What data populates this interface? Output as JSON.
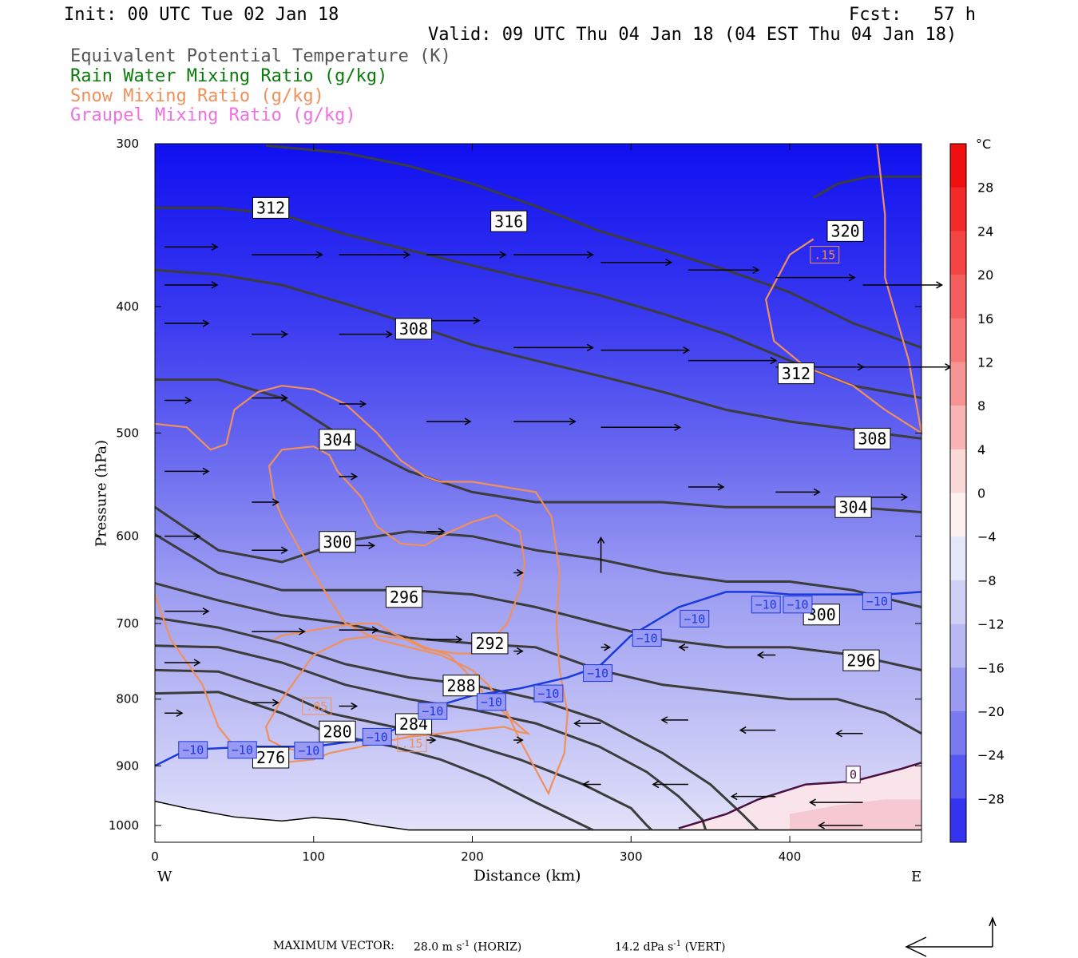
{
  "header": {
    "init": "Init: 00 UTC Tue 02 Jan 18",
    "fcst": "Fcst:   57 h",
    "valid": "Valid: 09 UTC Thu 04 Jan 18 (04 EST Thu 04 Jan 18)"
  },
  "fields": [
    {
      "label": "Equivalent Potential Temperature (K)",
      "color": "#555555"
    },
    {
      "label": "Rain Water Mixing Ratio (g/kg)",
      "color": "#0a7a0a"
    },
    {
      "label": "Snow Mixing Ratio (g/kg)",
      "color": "#f0905a"
    },
    {
      "label": "Graupel Mixing Ratio (g/kg)",
      "color": "#f070e0"
    }
  ],
  "axes": {
    "ylabel": "Pressure (hPa)",
    "xlabel": "Distance (km)",
    "west": "W",
    "east": "E",
    "y_ticks": [
      "300",
      "400",
      "500",
      "600",
      "700",
      "800",
      "900",
      "1000"
    ],
    "x_ticks": [
      "0",
      "100",
      "200",
      "300",
      "400"
    ]
  },
  "colorbar": {
    "unit": "°C",
    "ticks": [
      "28",
      "24",
      "20",
      "16",
      "12",
      "8",
      "4",
      "0",
      "-4",
      "-8",
      "-12",
      "-16",
      "-20",
      "-24",
      "-28"
    ]
  },
  "footer": {
    "max_vector": "MAXIMUM VECTOR:",
    "horiz": "28.0 m s",
    "horiz_unit": "(HORIZ)",
    "vert": "14.2 dPa s",
    "vert_unit": "(VERT)",
    "exp": "-1"
  },
  "chart_data": {
    "type": "contour",
    "xlim": [
      0,
      483
    ],
    "ylim": [
      1030,
      300
    ],
    "y_scale": "log",
    "temperature_shading_levels": [
      -28,
      -24,
      -20,
      -16,
      -12,
      -8,
      -4,
      0,
      4,
      8,
      12,
      16,
      20,
      24,
      28
    ],
    "theta_e_contours": [
      {
        "level": 276,
        "x": [
          0,
          40,
          80,
          110,
          150,
          180,
          210,
          240,
          270,
          276
        ],
        "p": [
          792,
          790,
          820,
          850,
          870,
          890,
          920,
          960,
          1000,
          1008
        ]
      },
      {
        "level": 280,
        "x": [
          0,
          40,
          80,
          110,
          150,
          190,
          230,
          270,
          300,
          310,
          313
        ],
        "p": [
          760,
          762,
          790,
          820,
          840,
          860,
          890,
          930,
          970,
          1000,
          1008
        ]
      },
      {
        "level": 284,
        "x": [
          0,
          40,
          80,
          120,
          160,
          200,
          240,
          280,
          310,
          330,
          345,
          347
        ],
        "p": [
          728,
          730,
          750,
          780,
          800,
          815,
          835,
          870,
          910,
          950,
          990,
          1008
        ]
      },
      {
        "level": 288,
        "x": [
          0,
          40,
          80,
          120,
          160,
          200,
          240,
          280,
          320,
          350,
          370,
          380
        ],
        "p": [
          693,
          705,
          725,
          752,
          770,
          780,
          800,
          830,
          880,
          930,
          980,
          1008
        ]
      },
      {
        "level": 292,
        "x": [
          0,
          40,
          80,
          120,
          160,
          200,
          240,
          280,
          320,
          360,
          400,
          430,
          460,
          483
        ],
        "p": [
          652,
          672,
          690,
          700,
          718,
          725,
          730,
          760,
          780,
          790,
          800,
          800,
          820,
          850
        ]
      },
      {
        "level": 296,
        "x": [
          0,
          40,
          80,
          120,
          160,
          200,
          240,
          280,
          320,
          360,
          400,
          440,
          483
        ],
        "p": [
          598,
          640,
          660,
          660,
          660,
          665,
          680,
          700,
          720,
          730,
          730,
          740,
          760
        ]
      },
      {
        "level": 300,
        "x": [
          0,
          40,
          80,
          120,
          160,
          200,
          240,
          280,
          320,
          360,
          400,
          440,
          483
        ],
        "p": [
          570,
          615,
          628,
          605,
          595,
          600,
          615,
          625,
          640,
          650,
          650,
          660,
          680
        ]
      },
      {
        "level": 304,
        "x": [
          0,
          40,
          80,
          120,
          160,
          200,
          240,
          280,
          320,
          360,
          400,
          440,
          483
        ],
        "p": [
          455,
          455,
          470,
          505,
          535,
          555,
          565,
          565,
          565,
          570,
          570,
          570,
          575
        ]
      },
      {
        "level": 308,
        "x": [
          0,
          40,
          80,
          120,
          160,
          200,
          240,
          280,
          320,
          360,
          400,
          440,
          483
        ],
        "p": [
          375,
          378,
          385,
          398,
          412,
          428,
          440,
          452,
          465,
          480,
          490,
          497,
          505
        ]
      },
      {
        "level": 312,
        "x": [
          0,
          40,
          80,
          120,
          160,
          200,
          240,
          280,
          320,
          360,
          400,
          440,
          483
        ],
        "p": [
          336,
          336,
          340,
          352,
          362,
          372,
          382,
          392,
          405,
          420,
          440,
          460,
          470
        ]
      },
      {
        "level": 316,
        "x": [
          70,
          120,
          160,
          200,
          240,
          280,
          320,
          360,
          400,
          440,
          483
        ],
        "p": [
          301,
          305,
          312,
          322,
          335,
          350,
          362,
          375,
          390,
          412,
          430
        ]
      },
      {
        "level": 320,
        "x": [
          415,
          430,
          450,
          483
        ],
        "p": [
          330,
          322,
          318,
          318
        ]
      }
    ],
    "snow_contours": [
      {
        "level": 0.05,
        "x": [
          0,
          10,
          30,
          40,
          50,
          60,
          80,
          100,
          110,
          130,
          150,
          160,
          180,
          200,
          220,
          230,
          235,
          210,
          195,
          185,
          170,
          160,
          140,
          120,
          100,
          80,
          70,
          72,
          80,
          95,
          100
        ],
        "p": [
          665,
          720,
          780,
          840,
          870,
          880,
          895,
          890,
          880,
          870,
          860,
          855,
          850,
          845,
          840,
          848,
          850,
          800,
          760,
          740,
          730,
          720,
          715,
          720,
          740,
          800,
          840,
          860,
          870,
          880,
          890
        ]
      },
      {
        "level": 0.05,
        "x": [
          0,
          20,
          35,
          45,
          50,
          65,
          80,
          100,
          120,
          140,
          155,
          170,
          180,
          200,
          220,
          240,
          250,
          255,
          253,
          255,
          260,
          258,
          250,
          248,
          230,
          220,
          210,
          200,
          180,
          160,
          140,
          120,
          110,
          100,
          90,
          80,
          75,
          72,
          80,
          100,
          110,
          115,
          130,
          140,
          155,
          170,
          180,
          200,
          215,
          230,
          233,
          230,
          222,
          210,
          200,
          190,
          170,
          150,
          140,
          130,
          120,
          110,
          100,
          90,
          80,
          75
        ],
        "p": [
          492,
          495,
          515,
          510,
          480,
          465,
          460,
          463,
          475,
          500,
          525,
          540,
          545,
          545,
          550,
          555,
          580,
          640,
          700,
          760,
          820,
          880,
          930,
          945,
          860,
          810,
          780,
          760,
          740,
          730,
          720,
          700,
          670,
          640,
          610,
          580,
          560,
          530,
          515,
          512,
          520,
          535,
          560,
          590,
          608,
          610,
          600,
          585,
          578,
          595,
          630,
          660,
          700,
          725,
          738,
          738,
          732,
          712,
          700,
          700,
          702,
          705,
          708,
          712,
          715,
          720
        ]
      },
      {
        "level": 0.15,
        "x": [
          415,
          400,
          385,
          390,
          410,
          440,
          460,
          483,
          475,
          460,
          460,
          455
        ],
        "p": [
          355,
          365,
          395,
          425,
          445,
          460,
          480,
          500,
          440,
          380,
          340,
          300
        ]
      }
    ],
    "graupel_contours": [],
    "temperature_contours": [
      {
        "level": -10,
        "x": [
          0,
          20,
          60,
          100,
          130,
          150,
          170,
          200,
          230,
          260,
          280,
          300,
          330,
          360,
          380,
          400,
          430,
          460,
          483
        ],
        "p": [
          900,
          875,
          870,
          870,
          860,
          845,
          815,
          795,
          785,
          770,
          755,
          715,
          680,
          662,
          662,
          665,
          665,
          665,
          662
        ]
      },
      {
        "level": 0,
        "x": [
          330,
          360,
          380,
          410,
          440,
          470,
          483
        ],
        "p": [
          1005,
          980,
          955,
          930,
          925,
          905,
          895
        ]
      }
    ],
    "contour_labels": [
      {
        "text": "312",
        "x": 73,
        "p": 336
      },
      {
        "text": "316",
        "x": 223,
        "p": 344
      },
      {
        "text": "320",
        "x": 435,
        "p": 350
      },
      {
        "text": "308",
        "x": 163,
        "p": 416
      },
      {
        "text": "312",
        "x": 404,
        "p": 450
      },
      {
        "text": "304",
        "x": 115,
        "p": 506
      },
      {
        "text": "308",
        "x": 452,
        "p": 505
      },
      {
        "text": "304",
        "x": 440,
        "p": 570
      },
      {
        "text": "300",
        "x": 115,
        "p": 606
      },
      {
        "text": "296",
        "x": 157,
        "p": 668
      },
      {
        "text": "300",
        "x": 420,
        "p": 689
      },
      {
        "text": "292",
        "x": 211,
        "p": 725
      },
      {
        "text": "296",
        "x": 445,
        "p": 747
      },
      {
        "text": "288",
        "x": 193,
        "p": 781
      },
      {
        "text": "284",
        "x": 163,
        "p": 836
      },
      {
        "text": "280",
        "x": 115,
        "p": 847
      },
      {
        "text": "276",
        "x": 73,
        "p": 887
      },
      {
        "text": "0",
        "x": 440,
        "p": 914
      },
      {
        "text": "-10",
        "x": 385,
        "p": 677
      },
      {
        "text": "-10",
        "x": 405,
        "p": 677
      },
      {
        "text": "-10",
        "x": 455,
        "p": 673
      },
      {
        "text": "-10",
        "x": 340,
        "p": 694
      },
      {
        "text": "-10",
        "x": 310,
        "p": 718
      },
      {
        "text": "-10",
        "x": 279,
        "p": 764
      },
      {
        "text": "-10",
        "x": 248,
        "p": 792
      },
      {
        "text": "-10",
        "x": 212,
        "p": 804
      },
      {
        "text": "-10",
        "x": 175,
        "p": 817
      },
      {
        "text": "-10",
        "x": 140,
        "p": 855
      },
      {
        "text": "-10",
        "x": 24,
        "p": 875
      },
      {
        "text": "-10",
        "x": 55,
        "p": 875
      },
      {
        "text": "-10",
        "x": 97,
        "p": 876
      },
      {
        "text": ".05",
        "x": 102,
        "p": 810
      },
      {
        "text": ".15",
        "x": 162,
        "p": 865
      },
      {
        "text": ".15",
        "x": 422,
        "p": 365
      }
    ],
    "wind_vectors": [
      [
        0,
        360,
        30,
        0
      ],
      [
        0,
        385,
        30,
        0
      ],
      [
        0,
        412,
        25,
        0
      ],
      [
        0,
        472,
        15,
        0
      ],
      [
        0,
        535,
        25,
        0
      ],
      [
        0,
        600,
        20,
        0
      ],
      [
        0,
        685,
        25,
        0
      ],
      [
        0,
        750,
        20,
        0
      ],
      [
        0,
        820,
        10,
        0
      ],
      [
        55,
        365,
        40,
        0
      ],
      [
        55,
        420,
        20,
        0
      ],
      [
        55,
        470,
        20,
        0
      ],
      [
        55,
        565,
        15,
        0
      ],
      [
        55,
        615,
        20,
        0
      ],
      [
        55,
        710,
        30,
        0
      ],
      [
        55,
        805,
        15,
        0
      ],
      [
        110,
        365,
        40,
        0
      ],
      [
        110,
        420,
        30,
        0
      ],
      [
        110,
        475,
        15,
        0
      ],
      [
        110,
        540,
        10,
        0
      ],
      [
        110,
        610,
        20,
        0
      ],
      [
        110,
        708,
        22,
        0
      ],
      [
        110,
        810,
        10,
        0
      ],
      [
        165,
        365,
        45,
        0
      ],
      [
        165,
        410,
        30,
        0
      ],
      [
        165,
        490,
        25,
        0
      ],
      [
        165,
        595,
        10,
        0
      ],
      [
        165,
        720,
        20,
        0
      ],
      [
        165,
        860,
        5,
        0
      ],
      [
        220,
        365,
        45,
        0
      ],
      [
        220,
        430,
        45,
        0
      ],
      [
        220,
        490,
        35,
        0
      ],
      [
        220,
        640,
        5,
        0
      ],
      [
        220,
        735,
        5,
        0
      ],
      [
        220,
        860,
        5,
        0
      ],
      [
        275,
        370,
        40,
        0
      ],
      [
        275,
        432,
        50,
        0
      ],
      [
        275,
        495,
        45,
        0
      ],
      [
        275,
        640,
        0,
        20
      ],
      [
        275,
        730,
        5,
        0
      ],
      [
        275,
        835,
        -15,
        0
      ],
      [
        275,
        930,
        -10,
        0
      ],
      [
        330,
        375,
        40,
        0
      ],
      [
        330,
        440,
        50,
        0
      ],
      [
        330,
        550,
        20,
        0
      ],
      [
        330,
        730,
        -5,
        0
      ],
      [
        330,
        830,
        -15,
        0
      ],
      [
        330,
        930,
        -20,
        0
      ],
      [
        385,
        380,
        45,
        0
      ],
      [
        385,
        445,
        50,
        0
      ],
      [
        385,
        555,
        25,
        0
      ],
      [
        385,
        740,
        -10,
        0
      ],
      [
        385,
        845,
        -20,
        0
      ],
      [
        385,
        950,
        -25,
        0
      ],
      [
        440,
        385,
        45,
        0
      ],
      [
        440,
        445,
        50,
        0
      ],
      [
        440,
        560,
        25,
        0
      ],
      [
        440,
        745,
        -10,
        0
      ],
      [
        440,
        850,
        -15,
        0
      ],
      [
        440,
        960,
        -30,
        0
      ],
      [
        440,
        1000,
        -25,
        0
      ]
    ],
    "max_vector": {
      "horiz_ms": 28.0,
      "vert_dpa_s": 14.2
    }
  }
}
